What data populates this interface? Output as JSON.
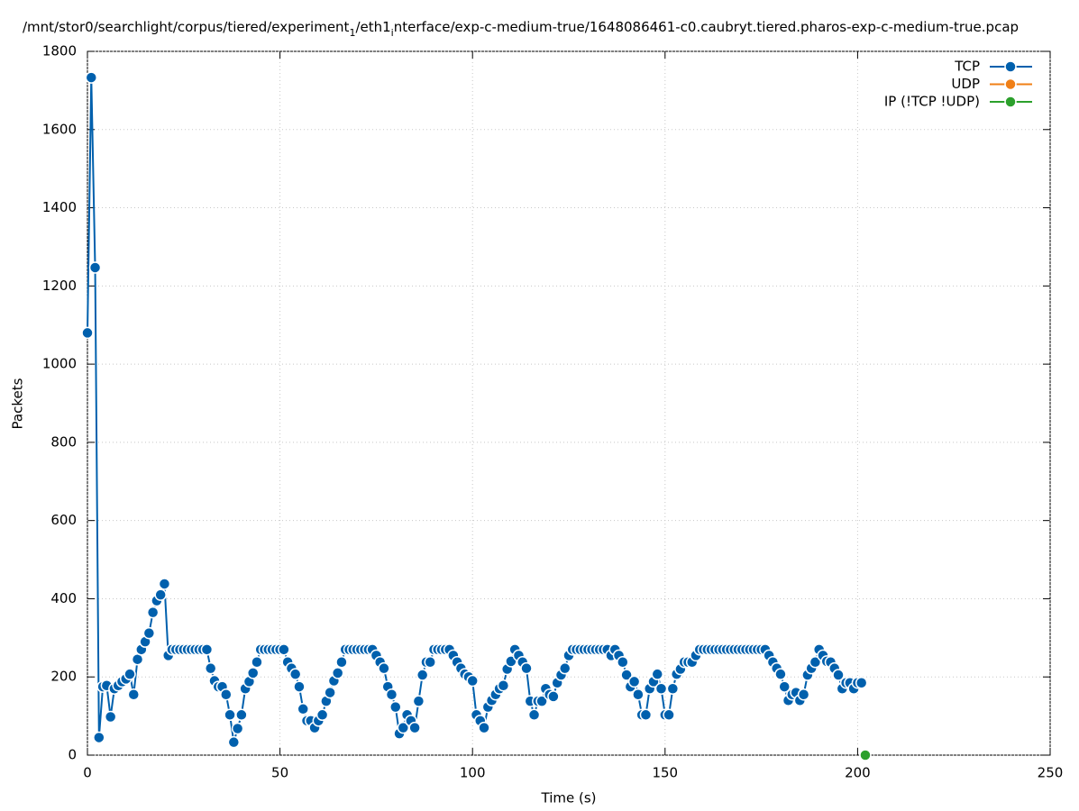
{
  "chart_data": {
    "type": "line",
    "title_segments": [
      {
        "text": "/mnt/stor0/searchlight/corpus/tiered/experiment",
        "sub": false
      },
      {
        "text": "1",
        "sub": true
      },
      {
        "text": "/eth1",
        "sub": false
      },
      {
        "text": "i",
        "sub": true
      },
      {
        "text": "nterface/exp-c-medium-true/1648086461-c0.caubryt.tiered.pharos-exp-c-medium-true.pcap",
        "sub": false
      }
    ],
    "x_label": "Time (s)",
    "y_label": "Packets",
    "xlim": [
      0,
      250
    ],
    "xticks": [
      0,
      50,
      100,
      150,
      200,
      250
    ],
    "ylim": [
      0,
      1800
    ],
    "yticks": [
      0,
      200,
      400,
      600,
      800,
      1000,
      1200,
      1400,
      1600,
      1800
    ],
    "grid": true,
    "legend": "top-right",
    "series": [
      {
        "name": "TCP",
        "color": "#0060ad",
        "x": [
          0,
          1,
          2,
          3,
          4,
          5,
          6,
          7,
          8,
          9,
          10,
          11,
          12,
          13,
          14,
          15,
          16,
          17,
          18,
          19,
          20,
          21,
          22,
          23,
          24,
          25,
          26,
          27,
          28,
          29,
          30,
          31,
          32,
          33,
          34,
          35,
          36,
          37,
          38,
          39,
          40,
          41,
          42,
          43,
          44,
          45,
          46,
          47,
          48,
          49,
          50,
          51,
          52,
          53,
          54,
          55,
          56,
          57,
          58,
          59,
          60,
          61,
          62,
          63,
          64,
          65,
          66,
          67,
          68,
          69,
          70,
          71,
          72,
          73,
          74,
          75,
          76,
          77,
          78,
          79,
          80,
          81,
          82,
          83,
          84,
          85,
          86,
          87,
          88,
          89,
          90,
          91,
          92,
          93,
          94,
          95,
          96,
          97,
          98,
          99,
          100,
          101,
          102,
          103,
          104,
          105,
          106,
          107,
          108,
          109,
          110,
          111,
          112,
          113,
          114,
          115,
          116,
          117,
          118,
          119,
          120,
          121,
          122,
          123,
          124,
          125,
          126,
          127,
          128,
          129,
          130,
          131,
          132,
          133,
          134,
          135,
          136,
          137,
          138,
          139,
          140,
          141,
          142,
          143,
          144,
          145,
          146,
          147,
          148,
          149,
          150,
          151,
          152,
          153,
          154,
          155,
          156,
          157,
          158,
          159,
          160,
          161,
          162,
          163,
          164,
          165,
          166,
          167,
          168,
          169,
          170,
          171,
          172,
          173,
          174,
          175,
          176,
          177,
          178,
          179,
          180,
          181,
          182,
          183,
          184,
          185,
          186,
          187,
          188,
          189,
          190,
          191,
          192,
          193,
          194,
          195,
          196,
          197,
          198,
          199,
          200,
          201
        ],
        "values": [
          1080,
          1733,
          1247,
          45,
          175,
          178,
          98,
          170,
          178,
          188,
          195,
          207,
          155,
          245,
          270,
          290,
          312,
          365,
          395,
          410,
          438,
          255,
          270,
          270,
          270,
          270,
          270,
          270,
          270,
          270,
          270,
          270,
          222,
          190,
          175,
          175,
          155,
          103,
          33,
          68,
          103,
          170,
          188,
          210,
          238,
          270,
          270,
          270,
          270,
          270,
          270,
          270,
          238,
          222,
          207,
          175,
          118,
          88,
          88,
          70,
          88,
          103,
          138,
          160,
          190,
          210,
          238,
          270,
          270,
          270,
          270,
          270,
          270,
          270,
          270,
          255,
          238,
          222,
          175,
          155,
          123,
          55,
          70,
          103,
          88,
          70,
          138,
          205,
          238,
          238,
          270,
          270,
          270,
          270,
          270,
          255,
          238,
          222,
          207,
          200,
          190,
          103,
          88,
          70,
          123,
          140,
          155,
          170,
          178,
          220,
          240,
          270,
          255,
          238,
          222,
          138,
          103,
          138,
          138,
          170,
          155,
          150,
          185,
          205,
          222,
          255,
          270,
          270,
          270,
          270,
          270,
          270,
          270,
          270,
          270,
          270,
          255,
          270,
          255,
          238,
          205,
          175,
          188,
          155,
          103,
          103,
          170,
          188,
          207,
          170,
          103,
          103,
          170,
          207,
          220,
          238,
          238,
          238,
          255,
          270,
          270,
          270,
          270,
          270,
          270,
          270,
          270,
          270,
          270,
          270,
          270,
          270,
          270,
          270,
          270,
          270,
          270,
          255,
          238,
          222,
          207,
          175,
          140,
          155,
          160,
          140,
          155,
          205,
          222,
          238,
          270,
          255,
          240,
          238,
          222,
          205,
          170,
          185,
          185,
          170,
          185,
          185
        ]
      },
      {
        "name": "UDP",
        "color": "#f07f16",
        "x": [],
        "values": []
      },
      {
        "name": "IP (!TCP  !UDP)",
        "color": "#2ca02c",
        "x": [
          202
        ],
        "values": [
          0
        ]
      }
    ]
  }
}
